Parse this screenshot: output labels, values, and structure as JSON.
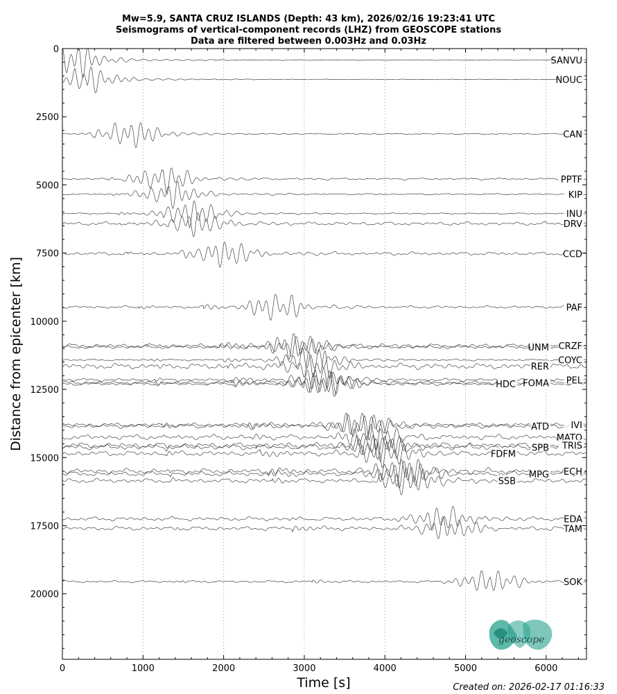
{
  "chart_data": {
    "type": "line",
    "title_lines": [
      "Mw=5.9, SANTA CRUZ ISLANDS (Depth: 43 km), 2026/02/16 19:23:41 UTC",
      "Seismograms of vertical-component records (LHZ) from GEOSCOPE stations",
      "Data are filtered between 0.003Hz and 0.03Hz"
    ],
    "xlabel": "Time [s]",
    "ylabel": "Distance from epicenter [km]",
    "xlim": [
      0,
      6500
    ],
    "ylim": [
      22400,
      0
    ],
    "y_inverted": true,
    "x_ticks": [
      0,
      1000,
      2000,
      3000,
      4000,
      5000,
      6000
    ],
    "y_ticks": [
      0,
      2500,
      5000,
      7500,
      10000,
      12500,
      15000,
      17500,
      20000
    ],
    "x_gridlines_dotted": [
      1000,
      2000,
      3000,
      4000,
      5000,
      6000
    ],
    "series": [
      {
        "name": "SANVU",
        "distance_km": 420,
        "p_arrival_s": 60,
        "s_arrival_s": 140,
        "surface_wave_s": 150,
        "amplitude": 1.0,
        "noise": 0.05
      },
      {
        "name": "NOUC",
        "distance_km": 1130,
        "p_arrival_s": 150,
        "s_arrival_s": 300,
        "surface_wave_s": 330,
        "amplitude": 0.8,
        "noise": 0.05
      },
      {
        "name": "CAN",
        "distance_km": 3130,
        "p_arrival_s": 380,
        "s_arrival_s": 680,
        "surface_wave_s": 850,
        "amplitude": 0.9,
        "noise": 0.08
      },
      {
        "name": "PPTF",
        "distance_km": 4780,
        "p_arrival_s": 560,
        "s_arrival_s": 1000,
        "surface_wave_s": 1250,
        "amplitude": 0.9,
        "noise": 0.15
      },
      {
        "name": "KIP",
        "distance_km": 5340,
        "p_arrival_s": 620,
        "s_arrival_s": 1100,
        "surface_wave_s": 1350,
        "amplitude": 0.8,
        "noise": 0.12
      },
      {
        "name": "INU",
        "distance_km": 6050,
        "p_arrival_s": 690,
        "s_arrival_s": 1250,
        "surface_wave_s": 1580,
        "amplitude": 0.9,
        "noise": 0.1
      },
      {
        "name": "DRV",
        "distance_km": 6420,
        "p_arrival_s": 720,
        "s_arrival_s": 1320,
        "surface_wave_s": 1650,
        "amplitude": 0.8,
        "noise": 0.3
      },
      {
        "name": "CCD",
        "distance_km": 7520,
        "p_arrival_s": 810,
        "s_arrival_s": 1500,
        "surface_wave_s": 2000,
        "amplitude": 0.9,
        "noise": 0.25
      },
      {
        "name": "PAF",
        "distance_km": 9480,
        "p_arrival_s": 950,
        "s_arrival_s": 1750,
        "surface_wave_s": 2650,
        "amplitude": 0.9,
        "noise": 0.2
      },
      {
        "name": "CRZF",
        "distance_km": 10900,
        "p_arrival_s": 1050,
        "s_arrival_s": 1950,
        "surface_wave_s": 2900,
        "amplitude": 0.9,
        "noise": 0.3
      },
      {
        "name": "UNM",
        "distance_km": 10950,
        "p_arrival_s": 1050,
        "s_arrival_s": 1950,
        "surface_wave_s": 2950,
        "amplitude": 0.7,
        "noise": 0.3
      },
      {
        "name": "COYC",
        "distance_km": 11420,
        "p_arrival_s": 1090,
        "s_arrival_s": 2000,
        "surface_wave_s": 3050,
        "amplitude": 0.8,
        "noise": 0.15
      },
      {
        "name": "RER",
        "distance_km": 11650,
        "p_arrival_s": 1100,
        "s_arrival_s": 2050,
        "surface_wave_s": 3150,
        "amplitude": 0.9,
        "noise": 0.45
      },
      {
        "name": "FOMA",
        "distance_km": 12250,
        "p_arrival_s": 1150,
        "s_arrival_s": 2100,
        "surface_wave_s": 3250,
        "amplitude": 0.9,
        "noise": 0.25
      },
      {
        "name": "HDC",
        "distance_km": 12300,
        "p_arrival_s": 1150,
        "s_arrival_s": 2120,
        "surface_wave_s": 3250,
        "amplitude": 0.8,
        "noise": 0.25
      },
      {
        "name": "PEL",
        "distance_km": 12150,
        "p_arrival_s": 1140,
        "s_arrival_s": 2100,
        "surface_wave_s": 3200,
        "amplitude": 0.8,
        "noise": 0.25
      },
      {
        "name": "IVI",
        "distance_km": 13800,
        "p_arrival_s": 1230,
        "s_arrival_s": 2300,
        "surface_wave_s": 3700,
        "amplitude": 0.9,
        "noise": 0.3
      },
      {
        "name": "ATD",
        "distance_km": 13850,
        "p_arrival_s": 1240,
        "s_arrival_s": 2300,
        "surface_wave_s": 3750,
        "amplitude": 0.9,
        "noise": 0.3
      },
      {
        "name": "MATO",
        "distance_km": 14250,
        "p_arrival_s": 1260,
        "s_arrival_s": 2350,
        "surface_wave_s": 3850,
        "amplitude": 0.9,
        "noise": 0.4
      },
      {
        "name": "TRIS",
        "distance_km": 14550,
        "p_arrival_s": 1280,
        "s_arrival_s": 2400,
        "surface_wave_s": 3900,
        "amplitude": 0.9,
        "noise": 0.4
      },
      {
        "name": "SPB",
        "distance_km": 14620,
        "p_arrival_s": 1280,
        "s_arrival_s": 2400,
        "surface_wave_s": 3950,
        "amplitude": 0.9,
        "noise": 0.4
      },
      {
        "name": "FDFM",
        "distance_km": 14850,
        "p_arrival_s": 1290,
        "s_arrival_s": 2450,
        "surface_wave_s": 4000,
        "amplitude": 0.9,
        "noise": 0.4
      },
      {
        "name": "ECH",
        "distance_km": 15500,
        "p_arrival_s": 1330,
        "s_arrival_s": 2550,
        "surface_wave_s": 4200,
        "amplitude": 1.0,
        "noise": 0.35
      },
      {
        "name": "MPG",
        "distance_km": 15600,
        "p_arrival_s": 1335,
        "s_arrival_s": 2560,
        "surface_wave_s": 4250,
        "amplitude": 0.9,
        "noise": 0.35
      },
      {
        "name": "SSB",
        "distance_km": 15850,
        "p_arrival_s": 1345,
        "s_arrival_s": 2600,
        "surface_wave_s": 4300,
        "amplitude": 0.9,
        "noise": 0.35
      },
      {
        "name": "EDA",
        "distance_km": 17250,
        "p_arrival_s": 1400,
        "s_arrival_s": 2800,
        "surface_wave_s": 4700,
        "amplitude": 0.8,
        "noise": 0.35
      },
      {
        "name": "TAM",
        "distance_km": 17600,
        "p_arrival_s": 1410,
        "s_arrival_s": 2850,
        "surface_wave_s": 4800,
        "amplitude": 0.8,
        "noise": 0.35
      },
      {
        "name": "SOK",
        "distance_km": 19550,
        "p_arrival_s": 1480,
        "s_arrival_s": 3100,
        "surface_wave_s": 5300,
        "amplitude": 0.8,
        "noise": 0.2
      }
    ]
  },
  "footer": {
    "created": "Created on: 2026-02-17 01:16:33"
  },
  "logo": {
    "text": "geoscope",
    "color": "#2aa28f"
  },
  "colors": {
    "trace": "#404040",
    "grid": "#b0b0b0",
    "axis": "#000000"
  }
}
